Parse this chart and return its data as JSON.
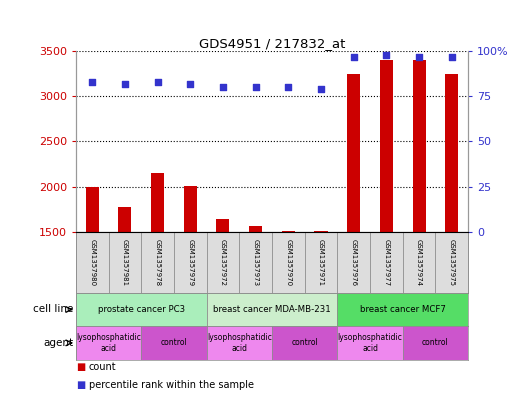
{
  "title": "GDS4951 / 217832_at",
  "samples": [
    "GSM1357980",
    "GSM1357981",
    "GSM1357978",
    "GSM1357979",
    "GSM1357972",
    "GSM1357973",
    "GSM1357970",
    "GSM1357971",
    "GSM1357976",
    "GSM1357977",
    "GSM1357974",
    "GSM1357975"
  ],
  "counts": [
    2000,
    1780,
    2150,
    2010,
    1640,
    1560,
    1510,
    1505,
    3250,
    3400,
    3400,
    3250
  ],
  "percentiles": [
    83,
    82,
    83,
    82,
    80,
    80,
    80,
    79,
    97,
    98,
    97,
    97
  ],
  "ylim_count": [
    1500,
    3500
  ],
  "ylim_pct": [
    0,
    100
  ],
  "yticks_count": [
    1500,
    2000,
    2500,
    3000,
    3500
  ],
  "yticks_pct": [
    0,
    25,
    50,
    75,
    100
  ],
  "bar_color": "#cc0000",
  "dot_color": "#3333cc",
  "cell_lines": [
    {
      "label": "prostate cancer PC3",
      "start": 0,
      "end": 4,
      "color": "#aaeebb"
    },
    {
      "label": "breast cancer MDA-MB-231",
      "start": 4,
      "end": 8,
      "color": "#cceecc"
    },
    {
      "label": "breast cancer MCF7",
      "start": 8,
      "end": 12,
      "color": "#55dd66"
    }
  ],
  "agents": [
    {
      "label": "lysophosphatidic\nacid",
      "start": 0,
      "end": 2,
      "color": "#ee88ee"
    },
    {
      "label": "control",
      "start": 2,
      "end": 4,
      "color": "#cc55cc"
    },
    {
      "label": "lysophosphatidic\nacid",
      "start": 4,
      "end": 6,
      "color": "#ee88ee"
    },
    {
      "label": "control",
      "start": 6,
      "end": 8,
      "color": "#cc55cc"
    },
    {
      "label": "lysophosphatidic\nacid",
      "start": 8,
      "end": 10,
      "color": "#ee88ee"
    },
    {
      "label": "control",
      "start": 10,
      "end": 12,
      "color": "#cc55cc"
    }
  ],
  "legend_count_label": "count",
  "legend_pct_label": "percentile rank within the sample",
  "cell_line_label": "cell line",
  "agent_label": "agent",
  "bg_color": "#ffffff",
  "tick_label_color_left": "#cc0000",
  "tick_label_color_right": "#3333cc",
  "bar_width": 0.4,
  "sample_box_color": "#dddddd",
  "sample_box_edge_color": "#888888"
}
